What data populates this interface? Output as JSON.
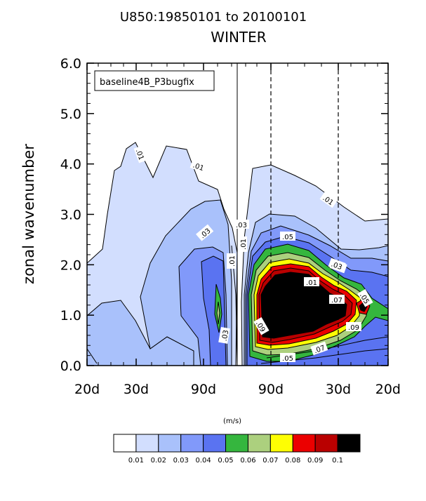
{
  "title_line1": "U850:19850101 to 20100101",
  "title_line2": "WINTER",
  "chart_data": {
    "type": "heatmap",
    "subtype": "wavenumber-frequency spectral power (filled contours)",
    "legend_label": "baseline4B_P3bugfix",
    "ylabel": "zonal wavenumber",
    "ylim": [
      0,
      6
    ],
    "yticks": [
      "0.0",
      "1.0",
      "2.0",
      "3.0",
      "4.0",
      "5.0",
      "6.0"
    ],
    "xticks": [
      "20d",
      "30d",
      "90d",
      "90d",
      "30d",
      "20d"
    ],
    "reference_lines": [
      "center (solid)",
      "90d (dashed)",
      "30d (dashed)"
    ],
    "units": "(m/s)",
    "colorbar": {
      "levels": [
        "0.01",
        "0.02",
        "0.03",
        "0.04",
        "0.05",
        "0.06",
        "0.07",
        "0.08",
        "0.09",
        "0.1"
      ],
      "colors": [
        "#ffffff",
        "#d2defe",
        "#a9c1fb",
        "#8199fa",
        "#5a73f1",
        "#35b63e",
        "#acd07e",
        "#fefe03",
        "#eb0000",
        "#b90000",
        "#000000"
      ]
    },
    "contour_labels": [
      ".01",
      ".01",
      ".01",
      ".03",
      ".01",
      ".01",
      ".03",
      ".03",
      ".05",
      ".01",
      ".03",
      ".07",
      ".05",
      ".09",
      ".07",
      ".09",
      ".05",
      ".03"
    ]
  }
}
